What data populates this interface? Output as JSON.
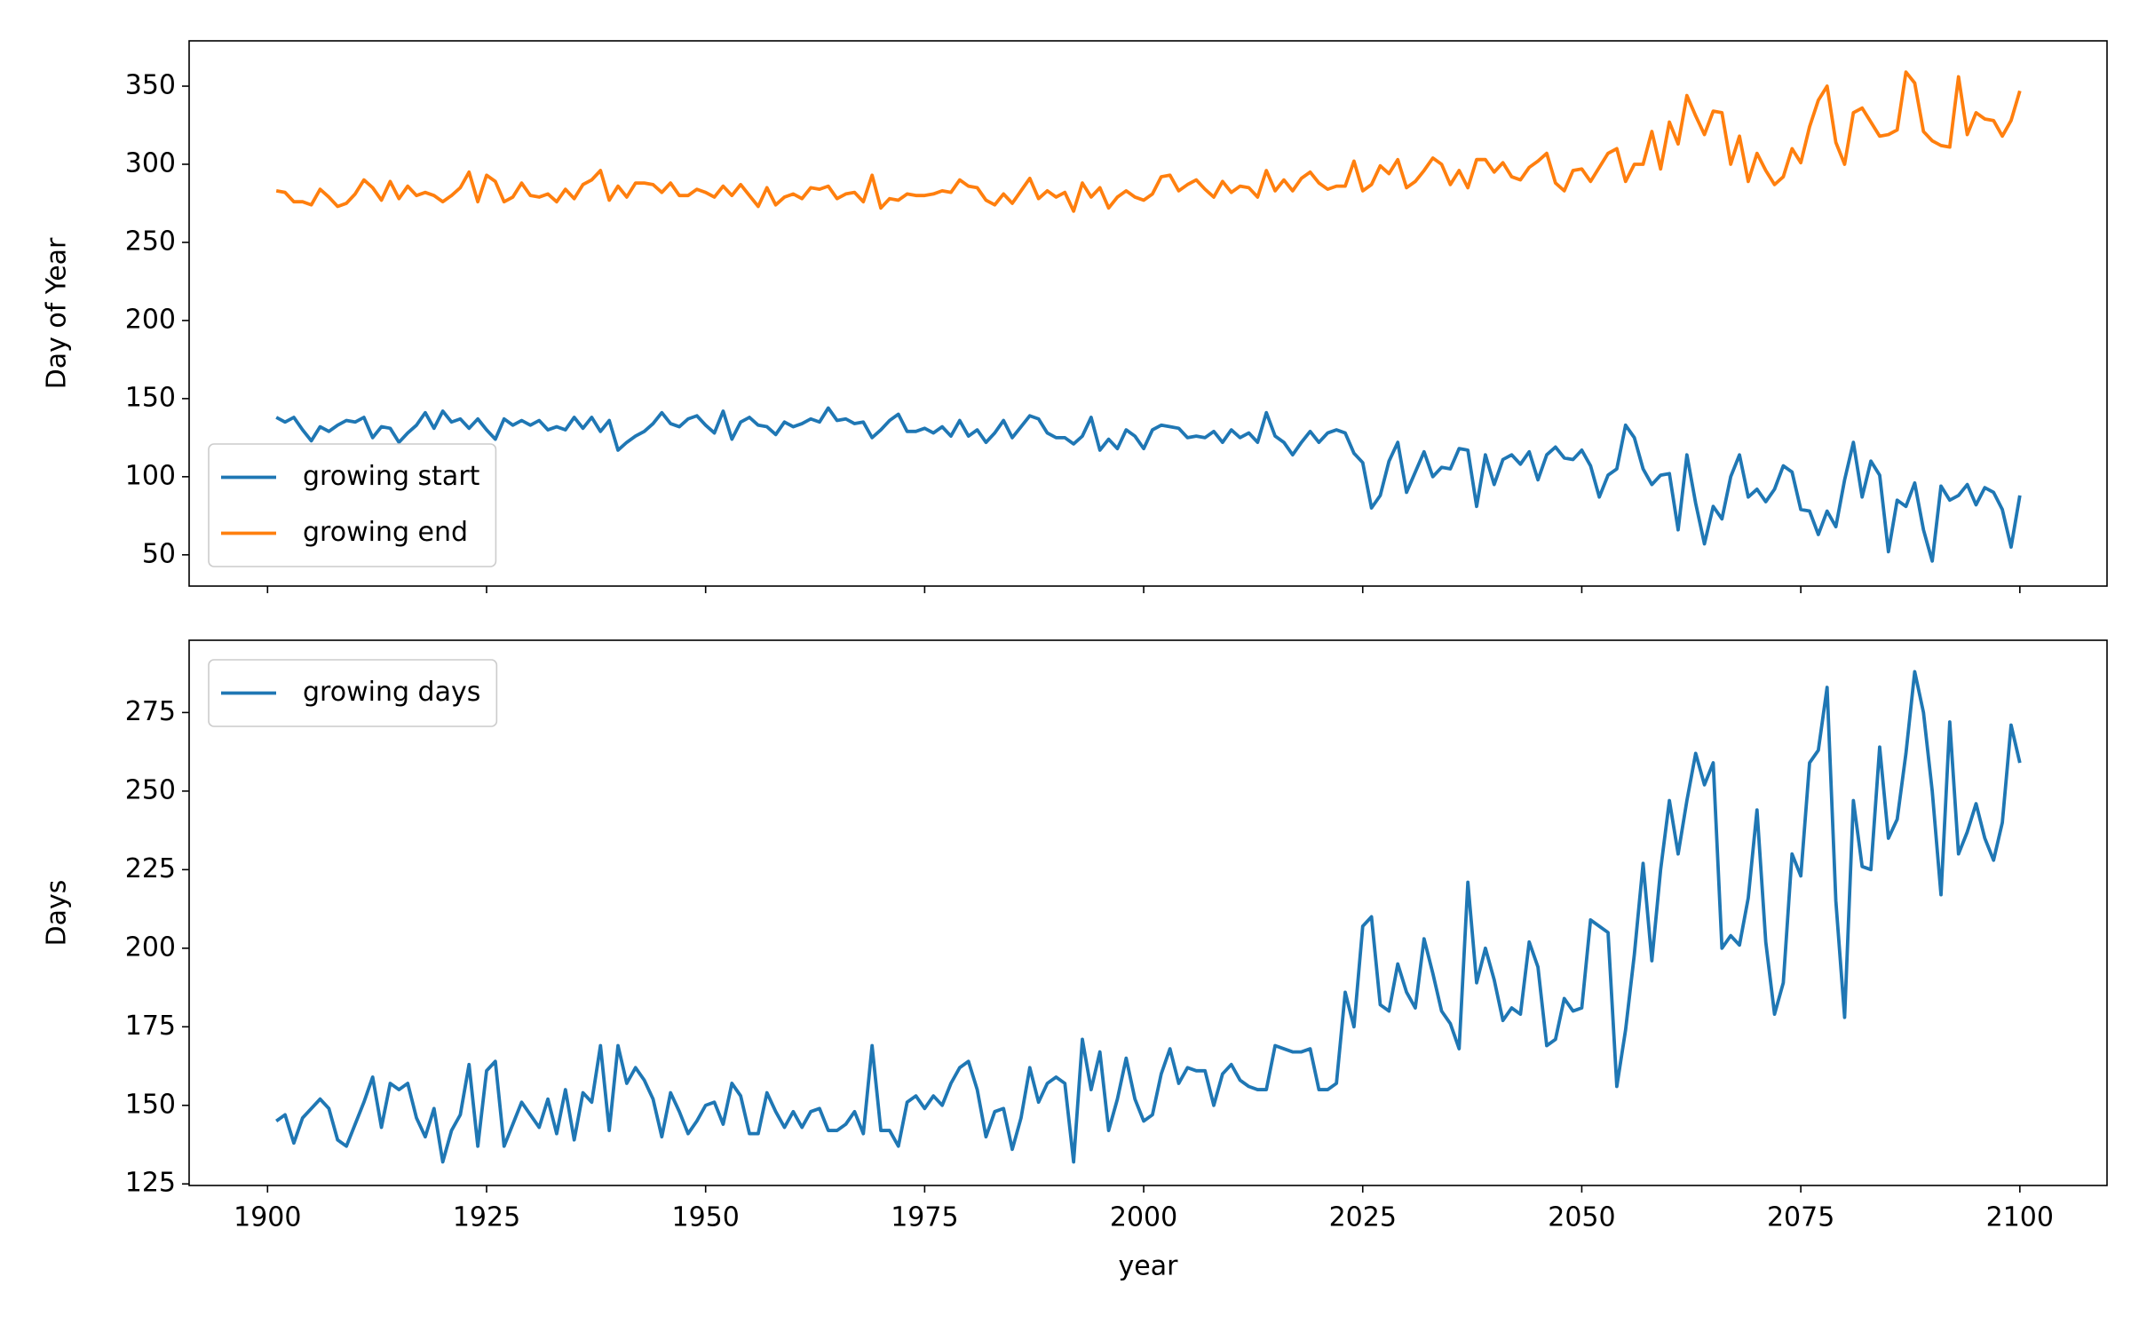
{
  "chart_data": [
    {
      "type": "line",
      "ylabel": "Day of Year",
      "legend": "lower left",
      "xlim": [
        1891.05,
        2109.95
      ],
      "xticks": [
        1900,
        1925,
        1950,
        1975,
        2000,
        2025,
        2050,
        2075,
        2100
      ],
      "ylim": [
        30,
        379
      ],
      "yticks": [
        50,
        100,
        150,
        200,
        250,
        300,
        350
      ],
      "x": [
        1901,
        1902,
        1903,
        1904,
        1905,
        1906,
        1907,
        1908,
        1909,
        1910,
        1911,
        1912,
        1913,
        1914,
        1915,
        1916,
        1917,
        1918,
        1919,
        1920,
        1921,
        1922,
        1923,
        1924,
        1925,
        1926,
        1927,
        1928,
        1929,
        1930,
        1931,
        1932,
        1933,
        1934,
        1935,
        1936,
        1937,
        1938,
        1939,
        1940,
        1941,
        1942,
        1943,
        1944,
        1945,
        1946,
        1947,
        1948,
        1949,
        1950,
        1951,
        1952,
        1953,
        1954,
        1955,
        1956,
        1957,
        1958,
        1959,
        1960,
        1961,
        1962,
        1963,
        1964,
        1965,
        1966,
        1967,
        1968,
        1969,
        1970,
        1971,
        1972,
        1973,
        1974,
        1975,
        1976,
        1977,
        1978,
        1979,
        1980,
        1981,
        1982,
        1983,
        1984,
        1985,
        1986,
        1987,
        1988,
        1989,
        1990,
        1991,
        1992,
        1993,
        1994,
        1995,
        1996,
        1997,
        1998,
        1999,
        2000,
        2001,
        2002,
        2003,
        2004,
        2005,
        2006,
        2007,
        2008,
        2009,
        2010,
        2011,
        2012,
        2013,
        2014,
        2015,
        2016,
        2017,
        2018,
        2019,
        2020,
        2021,
        2022,
        2023,
        2024,
        2025,
        2026,
        2027,
        2028,
        2029,
        2030,
        2031,
        2032,
        2033,
        2034,
        2035,
        2036,
        2037,
        2038,
        2039,
        2040,
        2041,
        2042,
        2043,
        2044,
        2045,
        2046,
        2047,
        2048,
        2049,
        2050,
        2051,
        2052,
        2053,
        2054,
        2055,
        2056,
        2057,
        2058,
        2059,
        2060,
        2061,
        2062,
        2063,
        2064,
        2065,
        2066,
        2067,
        2068,
        2069,
        2070,
        2071,
        2072,
        2073,
        2074,
        2075,
        2076,
        2077,
        2078,
        2079,
        2080,
        2081,
        2082,
        2083,
        2084,
        2085,
        2086,
        2087,
        2088,
        2089,
        2090,
        2091,
        2092,
        2093,
        2094,
        2095,
        2096,
        2097,
        2098,
        2099,
        2100
      ],
      "series": [
        {
          "name": "growing start",
          "color": "#1f77b4",
          "values": [
            138,
            135,
            138,
            130,
            123,
            132,
            129,
            133,
            136,
            135,
            138,
            125,
            132,
            131,
            122,
            128,
            133,
            141,
            131,
            142,
            135,
            137,
            131,
            137,
            130,
            124,
            137,
            133,
            136,
            133,
            136,
            130,
            132,
            130,
            138,
            131,
            138,
            129,
            136,
            117,
            122,
            126,
            129,
            134,
            141,
            134,
            132,
            137,
            139,
            133,
            128,
            142,
            124,
            135,
            138,
            133,
            132,
            127,
            135,
            132,
            134,
            137,
            135,
            144,
            136,
            137,
            134,
            135,
            125,
            130,
            136,
            140,
            129,
            129,
            131,
            128,
            132,
            126,
            136,
            126,
            130,
            122,
            128,
            136,
            125,
            132,
            139,
            137,
            128,
            125,
            125,
            121,
            126,
            138,
            117,
            124,
            118,
            130,
            126,
            118,
            130,
            133,
            132,
            131,
            125,
            126,
            125,
            129,
            122,
            130,
            125,
            128,
            122,
            141,
            126,
            122,
            114,
            122,
            129,
            122,
            128,
            130,
            128,
            115,
            109,
            80,
            88,
            110,
            122,
            90,
            103,
            116,
            100,
            106,
            105,
            118,
            117,
            81,
            114,
            95,
            111,
            114,
            108,
            116,
            98,
            114,
            119,
            112,
            111,
            117,
            107,
            87,
            101,
            105,
            133,
            125,
            105,
            95,
            101,
            102,
            66,
            114,
            83,
            57,
            81,
            73,
            100,
            114,
            87,
            92,
            84,
            92,
            107,
            103,
            79,
            78,
            63,
            78,
            68,
            98,
            122,
            87,
            110,
            101,
            52,
            85,
            81,
            96,
            66,
            46,
            94,
            85,
            88,
            95,
            82,
            93,
            90,
            79,
            55,
            88
          ]
        },
        {
          "name": "growing end",
          "color": "#ff7f0e",
          "values": [
            283,
            282,
            276,
            276,
            274,
            284,
            279,
            273,
            275,
            281,
            290,
            285,
            277,
            289,
            278,
            286,
            280,
            282,
            280,
            276,
            280,
            285,
            295,
            276,
            293,
            289,
            276,
            279,
            288,
            280,
            279,
            281,
            276,
            284,
            278,
            287,
            290,
            296,
            277,
            286,
            279,
            288,
            288,
            287,
            282,
            288,
            280,
            280,
            284,
            282,
            279,
            286,
            280,
            287,
            280,
            273,
            285,
            274,
            279,
            281,
            278,
            285,
            284,
            286,
            278,
            281,
            282,
            276,
            293,
            272,
            278,
            277,
            281,
            280,
            280,
            281,
            283,
            282,
            290,
            286,
            285,
            277,
            274,
            281,
            275,
            283,
            291,
            278,
            283,
            279,
            282,
            270,
            288,
            279,
            285,
            272,
            279,
            283,
            279,
            277,
            281,
            292,
            293,
            283,
            287,
            290,
            284,
            279,
            289,
            282,
            286,
            285,
            279,
            296,
            283,
            290,
            283,
            291,
            295,
            288,
            284,
            286,
            286,
            302,
            283,
            287,
            299,
            294,
            303,
            285,
            289,
            296,
            304,
            300,
            287,
            296,
            285,
            303,
            303,
            295,
            301,
            292,
            290,
            298,
            302,
            307,
            288,
            283,
            296,
            297,
            289,
            298,
            307,
            310,
            289,
            300,
            300,
            321,
            297,
            327,
            313,
            344,
            331,
            319,
            334,
            333,
            300,
            318,
            289,
            307,
            296,
            287,
            292,
            310,
            301,
            324,
            341,
            350,
            314,
            300,
            333,
            336,
            327,
            318,
            319,
            322,
            359,
            352,
            321,
            315,
            312,
            311,
            356,
            319,
            333,
            329,
            328,
            318,
            328,
            347
          ]
        }
      ]
    },
    {
      "type": "line",
      "ylabel": "Days",
      "xlabel": "year",
      "legend": "upper left",
      "xlim": [
        1891.05,
        2109.95
      ],
      "xticks": [
        1900,
        1925,
        1950,
        1975,
        2000,
        2025,
        2050,
        2075,
        2100
      ],
      "ylim": [
        124.5,
        298
      ],
      "yticks": [
        125,
        150,
        175,
        200,
        225,
        250,
        275
      ],
      "x": [
        1901,
        1902,
        1903,
        1904,
        1905,
        1906,
        1907,
        1908,
        1909,
        1910,
        1911,
        1912,
        1913,
        1914,
        1915,
        1916,
        1917,
        1918,
        1919,
        1920,
        1921,
        1922,
        1923,
        1924,
        1925,
        1926,
        1927,
        1928,
        1929,
        1930,
        1931,
        1932,
        1933,
        1934,
        1935,
        1936,
        1937,
        1938,
        1939,
        1940,
        1941,
        1942,
        1943,
        1944,
        1945,
        1946,
        1947,
        1948,
        1949,
        1950,
        1951,
        1952,
        1953,
        1954,
        1955,
        1956,
        1957,
        1958,
        1959,
        1960,
        1961,
        1962,
        1963,
        1964,
        1965,
        1966,
        1967,
        1968,
        1969,
        1970,
        1971,
        1972,
        1973,
        1974,
        1975,
        1976,
        1977,
        1978,
        1979,
        1980,
        1981,
        1982,
        1983,
        1984,
        1985,
        1986,
        1987,
        1988,
        1989,
        1990,
        1991,
        1992,
        1993,
        1994,
        1995,
        1996,
        1997,
        1998,
        1999,
        2000,
        2001,
        2002,
        2003,
        2004,
        2005,
        2006,
        2007,
        2008,
        2009,
        2010,
        2011,
        2012,
        2013,
        2014,
        2015,
        2016,
        2017,
        2018,
        2019,
        2020,
        2021,
        2022,
        2023,
        2024,
        2025,
        2026,
        2027,
        2028,
        2029,
        2030,
        2031,
        2032,
        2033,
        2034,
        2035,
        2036,
        2037,
        2038,
        2039,
        2040,
        2041,
        2042,
        2043,
        2044,
        2045,
        2046,
        2047,
        2048,
        2049,
        2050,
        2051,
        2052,
        2053,
        2054,
        2055,
        2056,
        2057,
        2058,
        2059,
        2060,
        2061,
        2062,
        2063,
        2064,
        2065,
        2066,
        2067,
        2068,
        2069,
        2070,
        2071,
        2072,
        2073,
        2074,
        2075,
        2076,
        2077,
        2078,
        2079,
        2080,
        2081,
        2082,
        2083,
        2084,
        2085,
        2086,
        2087,
        2088,
        2089,
        2090,
        2091,
        2092,
        2093,
        2094,
        2095,
        2096,
        2097,
        2098,
        2099,
        2100
      ],
      "series": [
        {
          "name": "growing days",
          "color": "#1f77b4",
          "values": [
            145,
            147,
            138,
            146,
            149,
            152,
            149,
            139,
            137,
            144,
            151,
            159,
            143,
            157,
            155,
            157,
            146,
            140,
            149,
            132,
            142,
            147,
            163,
            137,
            161,
            164,
            137,
            144,
            151,
            147,
            143,
            152,
            141,
            155,
            139,
            154,
            151,
            169,
            142,
            169,
            157,
            162,
            158,
            152,
            140,
            154,
            148,
            141,
            145,
            150,
            151,
            144,
            157,
            153,
            141,
            141,
            154,
            148,
            143,
            148,
            143,
            148,
            149,
            142,
            142,
            144,
            148,
            141,
            169,
            142,
            142,
            137,
            151,
            153,
            149,
            153,
            150,
            157,
            162,
            164,
            155,
            140,
            148,
            149,
            136,
            146,
            162,
            151,
            157,
            159,
            157,
            132,
            171,
            155,
            167,
            142,
            152,
            165,
            152,
            145,
            147,
            160,
            168,
            157,
            162,
            161,
            161,
            150,
            160,
            163,
            158,
            156,
            155,
            155,
            169,
            168,
            167,
            167,
            168,
            155,
            155,
            157,
            186,
            175,
            207,
            210,
            182,
            180,
            195,
            186,
            181,
            203,
            192,
            180,
            176,
            168,
            221,
            189,
            200,
            190,
            177,
            181,
            179,
            202,
            194,
            169,
            171,
            184,
            180,
            181,
            209,
            207,
            205,
            156,
            174,
            198,
            227,
            196,
            225,
            247,
            230,
            247,
            262,
            252,
            259,
            200,
            204,
            201,
            216,
            244,
            202,
            179,
            189,
            230,
            223,
            259,
            263,
            283,
            215,
            178,
            247,
            226,
            225,
            264,
            235,
            241,
            262,
            288,
            275,
            250,
            217,
            272,
            230,
            237,
            246,
            235,
            228,
            240,
            271,
            259
          ]
        }
      ]
    }
  ]
}
